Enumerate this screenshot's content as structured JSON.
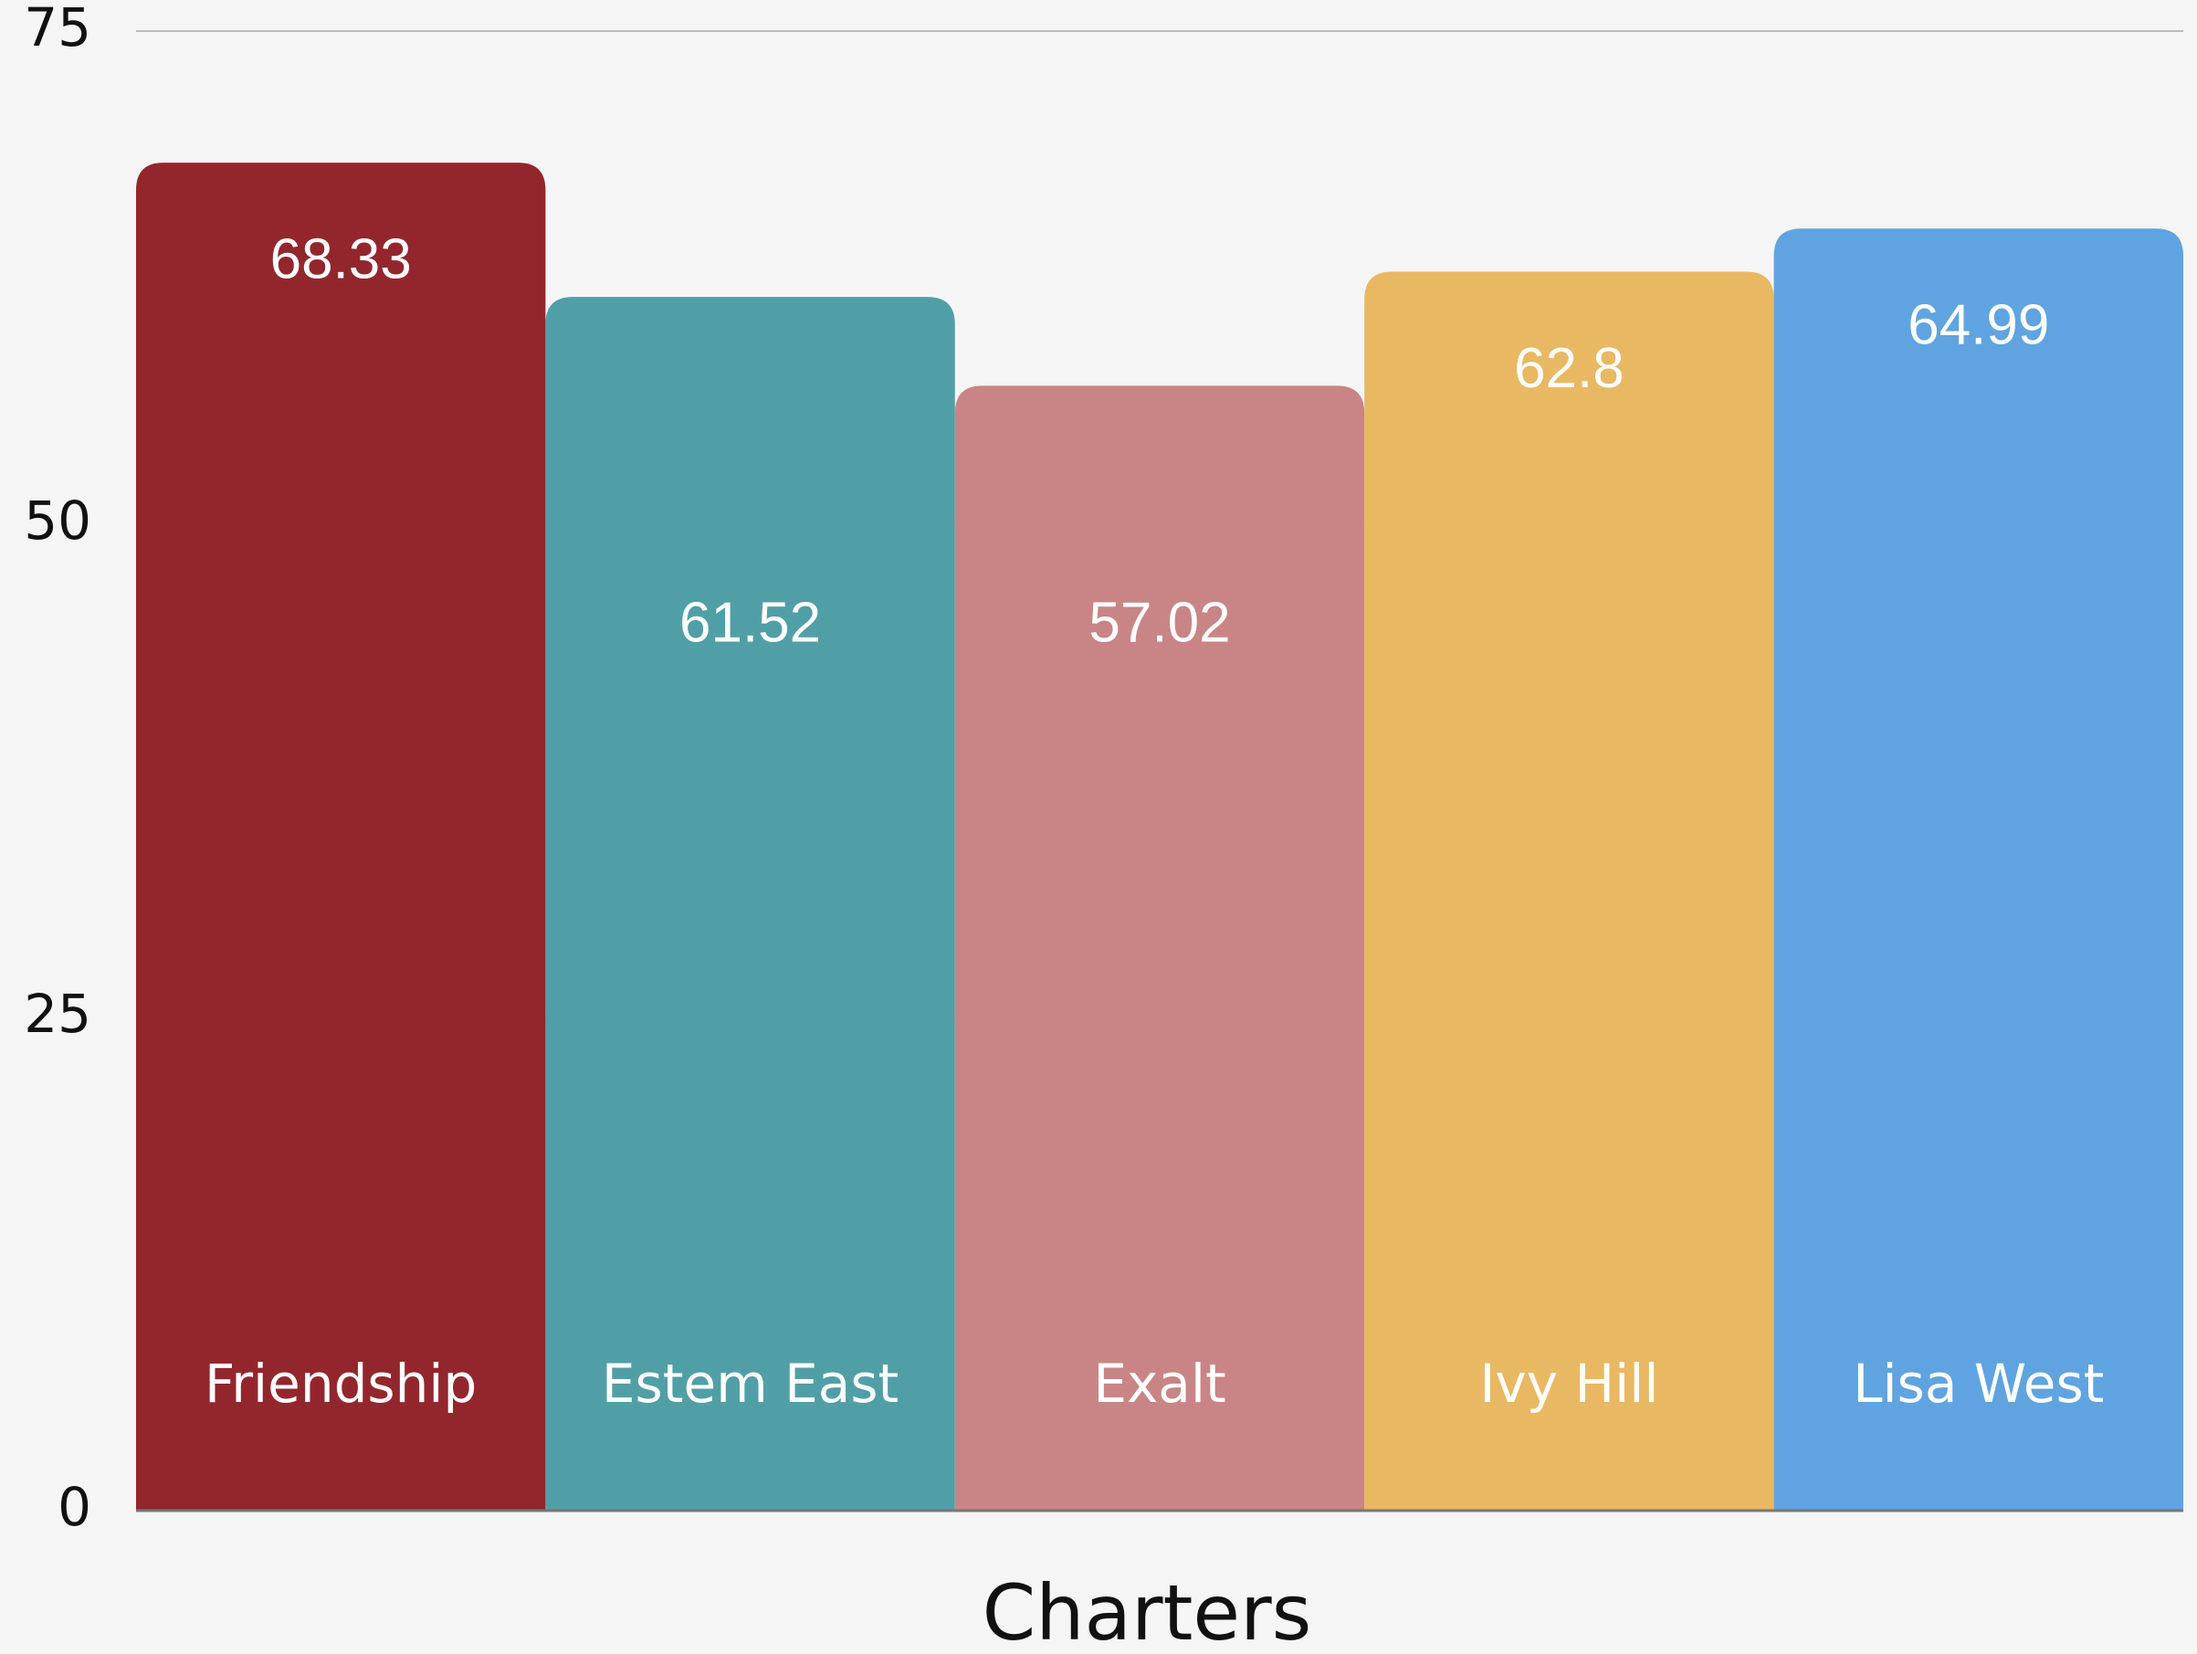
{
  "chart_data": {
    "type": "bar",
    "x_label": "Charters",
    "categories": [
      "Friendship",
      "Estem East",
      "Exalt",
      "Ivy Hill",
      "Lisa West"
    ],
    "values": [
      68.33,
      61.52,
      57.02,
      62.8,
      64.99
    ],
    "colors": [
      "#93262d",
      "#519fa6",
      "#c98585",
      "#e9b862",
      "#5fa4e0"
    ],
    "ylim": [
      0,
      75
    ],
    "yticks": [
      0,
      25,
      50,
      75
    ],
    "grid": true
  }
}
